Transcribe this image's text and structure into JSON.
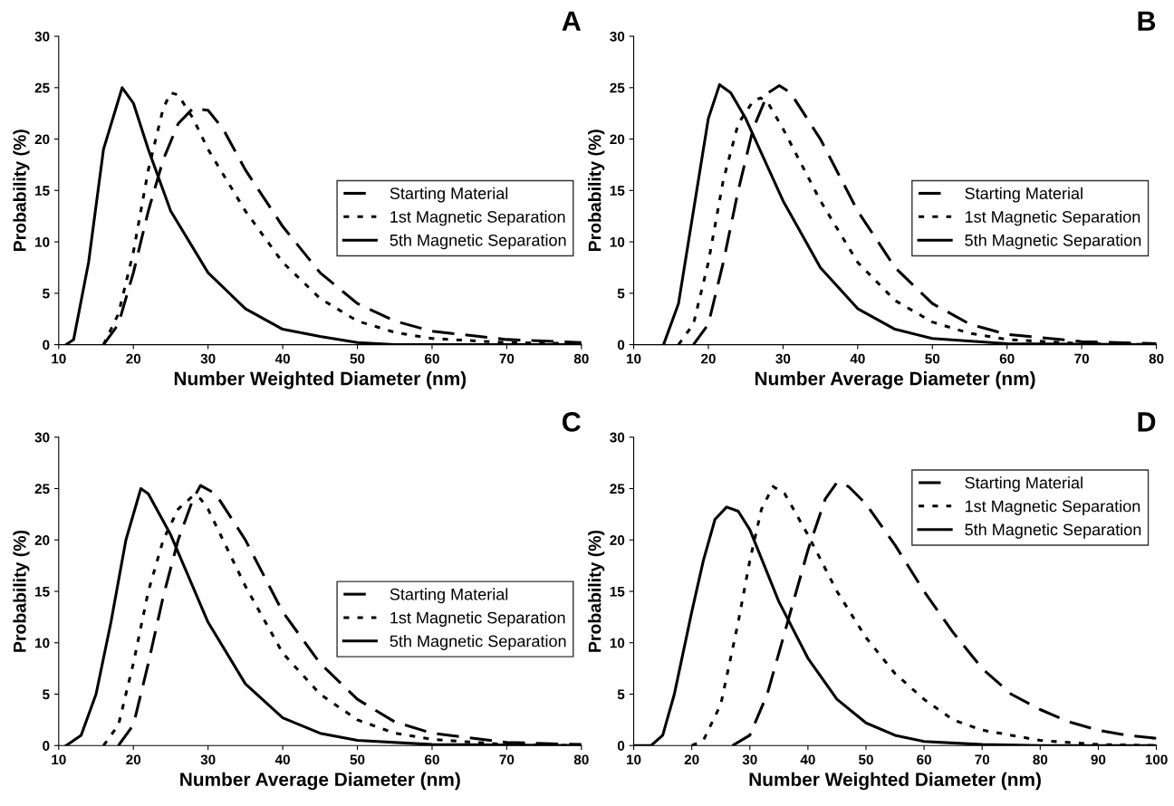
{
  "chart_data": [
    {
      "type": "line",
      "title": "A",
      "xlabel": "Number Weighted Diameter (nm)",
      "ylabel": "Probability (%)",
      "xlim": [
        10,
        80
      ],
      "xticks": [
        10,
        20,
        30,
        40,
        50,
        60,
        70,
        80
      ],
      "ylim": [
        0,
        30
      ],
      "yticks": [
        0,
        5,
        10,
        15,
        20,
        25,
        30
      ],
      "grid": false,
      "legend": "right",
      "marker": "none",
      "series": [
        {
          "name": "Starting Material",
          "color": "#000000",
          "line_style": "dashed",
          "x": [
            16,
            18,
            20,
            22,
            24,
            26,
            28,
            30,
            32,
            35,
            40,
            45,
            50,
            55,
            60,
            70,
            80
          ],
          "values": [
            0,
            2,
            7,
            13,
            18,
            21.5,
            23,
            22.8,
            21,
            17,
            11.5,
            7,
            4,
            2.3,
            1.3,
            0.5,
            0.2
          ]
        },
        {
          "name": "1st Magnetic Separation",
          "color": "#000000",
          "line_style": "dotted",
          "x": [
            16,
            18,
            20,
            22,
            24,
            25,
            26,
            28,
            30,
            35,
            40,
            45,
            50,
            55,
            60,
            70,
            80
          ],
          "values": [
            0,
            3,
            9,
            17,
            23,
            24.5,
            24.3,
            22,
            19,
            13,
            8,
            4.5,
            2.3,
            1.2,
            0.6,
            0.2,
            0.1
          ]
        },
        {
          "name": "5th Magnetic Separation",
          "color": "#000000",
          "line_style": "solid",
          "x": [
            11,
            12,
            14,
            16,
            18.5,
            20,
            22,
            25,
            30,
            35,
            40,
            45,
            50,
            55,
            80
          ],
          "values": [
            0,
            0.5,
            8,
            19,
            25,
            23.5,
            19,
            13,
            7,
            3.5,
            1.5,
            0.8,
            0.2,
            0,
            0
          ]
        }
      ]
    },
    {
      "type": "line",
      "title": "B",
      "xlabel": "Number Average Diameter (nm)",
      "ylabel": "Probability (%)",
      "xlim": [
        10,
        80
      ],
      "xticks": [
        10,
        20,
        30,
        40,
        50,
        60,
        70,
        80
      ],
      "ylim": [
        0,
        30
      ],
      "yticks": [
        0,
        5,
        10,
        15,
        20,
        25,
        30
      ],
      "grid": false,
      "legend": "right",
      "marker": "none",
      "series": [
        {
          "name": "Starting Material",
          "color": "#000000",
          "line_style": "dashed",
          "x": [
            18,
            20,
            22,
            24,
            26,
            28,
            29.5,
            31,
            35,
            40,
            45,
            50,
            55,
            60,
            70,
            80
          ],
          "values": [
            0,
            2,
            8,
            15,
            21,
            24.5,
            25.2,
            24.5,
            20,
            13,
            7.5,
            4,
            2,
            1,
            0.3,
            0.1
          ]
        },
        {
          "name": "1st Magnetic Separation",
          "color": "#000000",
          "line_style": "dotted",
          "x": [
            16,
            18,
            20,
            22,
            24,
            26,
            27,
            28,
            30,
            35,
            40,
            45,
            50,
            55,
            60,
            70,
            80
          ],
          "values": [
            0,
            2,
            8,
            16,
            21.5,
            23.7,
            24,
            23.5,
            21,
            14,
            8,
            4.3,
            2.2,
            1.1,
            0.5,
            0.1,
            0
          ]
        },
        {
          "name": "5th Magnetic Separation",
          "color": "#000000",
          "line_style": "solid",
          "x": [
            14,
            16,
            18,
            20,
            21.5,
            23,
            25,
            30,
            35,
            40,
            45,
            50,
            60,
            80
          ],
          "values": [
            0,
            4,
            13,
            22,
            25.3,
            24.5,
            22,
            14,
            7.5,
            3.5,
            1.5,
            0.6,
            0.1,
            0
          ]
        }
      ]
    },
    {
      "type": "line",
      "title": "C",
      "xlabel": "Number Average Diameter (nm)",
      "ylabel": "Probability (%)",
      "xlim": [
        10,
        80
      ],
      "xticks": [
        10,
        20,
        30,
        40,
        50,
        60,
        70,
        80
      ],
      "ylim": [
        0,
        30
      ],
      "yticks": [
        0,
        5,
        10,
        15,
        20,
        25,
        30
      ],
      "grid": false,
      "legend": "right",
      "marker": "none",
      "series": [
        {
          "name": "Starting Material",
          "color": "#000000",
          "line_style": "dashed",
          "x": [
            18,
            20,
            22,
            24,
            26,
            28,
            29,
            31,
            35,
            40,
            45,
            50,
            55,
            60,
            70,
            80
          ],
          "values": [
            0,
            2,
            8,
            14.5,
            20,
            24,
            25.3,
            24.5,
            20,
            13,
            8,
            4.5,
            2.3,
            1.2,
            0.3,
            0.1
          ]
        },
        {
          "name": "1st Magnetic Separation",
          "color": "#000000",
          "line_style": "dotted",
          "x": [
            16,
            18,
            20,
            22,
            24,
            26,
            28,
            29,
            30,
            35,
            40,
            45,
            50,
            55,
            60,
            70,
            80
          ],
          "values": [
            0,
            2,
            8,
            15,
            20,
            23,
            24.3,
            24,
            23,
            15.5,
            9,
            5,
            2.5,
            1.2,
            0.6,
            0.1,
            0
          ]
        },
        {
          "name": "5th Magnetic Separation",
          "color": "#000000",
          "line_style": "solid",
          "x": [
            11,
            13,
            15,
            17,
            19,
            21,
            22,
            25,
            30,
            35,
            40,
            45,
            50,
            60,
            80
          ],
          "values": [
            0,
            1,
            5,
            12,
            20,
            25,
            24.5,
            20.5,
            12,
            6,
            2.7,
            1.2,
            0.5,
            0.1,
            0
          ]
        }
      ]
    },
    {
      "type": "line",
      "title": "D",
      "xlabel": "Number Weighted Diameter (nm)",
      "ylabel": "Probability (%)",
      "xlim": [
        10,
        100
      ],
      "xticks": [
        10,
        20,
        30,
        40,
        50,
        60,
        70,
        80,
        90,
        100
      ],
      "ylim": [
        0,
        30
      ],
      "yticks": [
        0,
        5,
        10,
        15,
        20,
        25,
        30
      ],
      "grid": false,
      "legend": "top right",
      "marker": "none",
      "series": [
        {
          "name": "Starting Material",
          "color": "#000000",
          "line_style": "dashed",
          "x": [
            27,
            30,
            33,
            36,
            40,
            43,
            45,
            47,
            50,
            55,
            60,
            65,
            70,
            75,
            80,
            85,
            90,
            95,
            100
          ],
          "values": [
            0,
            1,
            5,
            11,
            19,
            24,
            25.6,
            25.2,
            23.5,
            19.5,
            15,
            11,
            7.5,
            5,
            3.5,
            2.3,
            1.5,
            1,
            0.7
          ]
        },
        {
          "name": "1st Magnetic Separation",
          "color": "#000000",
          "line_style": "dotted",
          "x": [
            20,
            22,
            25,
            28,
            30,
            32,
            34,
            36,
            40,
            45,
            50,
            55,
            60,
            65,
            70,
            80,
            90,
            100
          ],
          "values": [
            0,
            0.5,
            4,
            12,
            18,
            23,
            25.2,
            24.5,
            20.5,
            15,
            10.5,
            7,
            4.5,
            2.5,
            1.5,
            0.5,
            0.1,
            0
          ]
        },
        {
          "name": "5th Magnetic Separation",
          "color": "#000000",
          "line_style": "solid",
          "x": [
            10,
            13,
            15,
            17,
            20,
            22,
            24,
            26,
            28,
            30,
            35,
            40,
            45,
            50,
            55,
            60,
            70,
            80,
            100
          ],
          "values": [
            0,
            0,
            1,
            5,
            13,
            18,
            22,
            23.2,
            22.8,
            21,
            14,
            8.5,
            4.5,
            2.2,
            1,
            0.4,
            0.1,
            0,
            0
          ]
        }
      ]
    }
  ]
}
